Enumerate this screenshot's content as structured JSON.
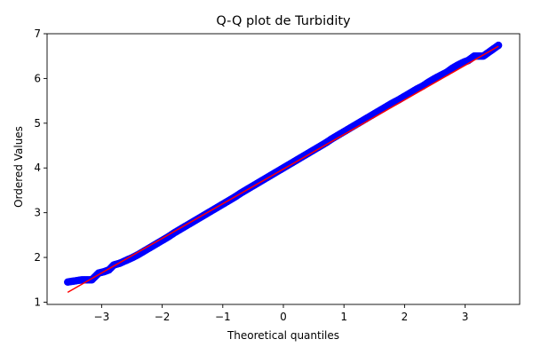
{
  "chart_data": {
    "type": "scatter",
    "title": "Q-Q plot de Turbidity",
    "xlabel": "Theoretical quantiles",
    "ylabel": "Ordered Values",
    "xlim": [
      -3.9,
      3.9
    ],
    "ylim": [
      0.95,
      7.0
    ],
    "x_ticks": [
      -3,
      -2,
      -1,
      0,
      1,
      2,
      3
    ],
    "y_ticks": [
      1,
      2,
      3,
      4,
      5,
      6,
      7
    ],
    "grid": false,
    "legend": "none",
    "series": [
      {
        "role": "sample points",
        "color": "#0000ff",
        "marker": "circle",
        "points": [
          [
            -3.56,
            1.45
          ],
          [
            -3.32,
            1.5
          ],
          [
            -3.16,
            1.5
          ],
          [
            -3.05,
            1.65
          ],
          [
            -2.96,
            1.68
          ],
          [
            -2.88,
            1.72
          ],
          [
            -2.8,
            1.83
          ],
          [
            -2.7,
            1.87
          ],
          [
            -2.6,
            1.93
          ],
          [
            -2.5,
            1.99
          ],
          [
            -2.4,
            2.06
          ],
          [
            -2.3,
            2.14
          ],
          [
            -2.2,
            2.22
          ],
          [
            -2.1,
            2.3
          ],
          [
            -2.0,
            2.38
          ],
          [
            -1.9,
            2.46
          ],
          [
            -1.8,
            2.55
          ],
          [
            -1.7,
            2.63
          ],
          [
            -1.6,
            2.71
          ],
          [
            -1.5,
            2.79
          ],
          [
            -1.4,
            2.87
          ],
          [
            -1.3,
            2.95
          ],
          [
            -1.2,
            3.03
          ],
          [
            -1.1,
            3.11
          ],
          [
            -1.0,
            3.19
          ],
          [
            -0.9,
            3.27
          ],
          [
            -0.8,
            3.35
          ],
          [
            -0.7,
            3.44
          ],
          [
            -0.6,
            3.52
          ],
          [
            -0.5,
            3.6
          ],
          [
            -0.4,
            3.68
          ],
          [
            -0.3,
            3.76
          ],
          [
            -0.2,
            3.84
          ],
          [
            -0.1,
            3.92
          ],
          [
            0.0,
            4.0
          ],
          [
            0.1,
            4.08
          ],
          [
            0.2,
            4.16
          ],
          [
            0.3,
            4.24
          ],
          [
            0.4,
            4.32
          ],
          [
            0.5,
            4.4
          ],
          [
            0.6,
            4.48
          ],
          [
            0.7,
            4.56
          ],
          [
            0.8,
            4.65
          ],
          [
            0.9,
            4.73
          ],
          [
            1.0,
            4.81
          ],
          [
            1.1,
            4.89
          ],
          [
            1.2,
            4.97
          ],
          [
            1.3,
            5.05
          ],
          [
            1.4,
            5.13
          ],
          [
            1.5,
            5.21
          ],
          [
            1.6,
            5.29
          ],
          [
            1.7,
            5.37
          ],
          [
            1.8,
            5.45
          ],
          [
            1.9,
            5.52
          ],
          [
            2.0,
            5.6
          ],
          [
            2.1,
            5.68
          ],
          [
            2.2,
            5.76
          ],
          [
            2.3,
            5.83
          ],
          [
            2.4,
            5.92
          ],
          [
            2.5,
            6.0
          ],
          [
            2.6,
            6.07
          ],
          [
            2.7,
            6.14
          ],
          [
            2.78,
            6.22
          ],
          [
            2.88,
            6.3
          ],
          [
            2.97,
            6.36
          ],
          [
            3.05,
            6.4
          ],
          [
            3.15,
            6.5
          ],
          [
            3.3,
            6.5
          ],
          [
            3.55,
            6.74
          ]
        ]
      },
      {
        "role": "reference line",
        "color": "#ff0000",
        "line": [
          [
            -3.56,
            1.22
          ],
          [
            3.55,
            6.72
          ]
        ]
      }
    ]
  }
}
